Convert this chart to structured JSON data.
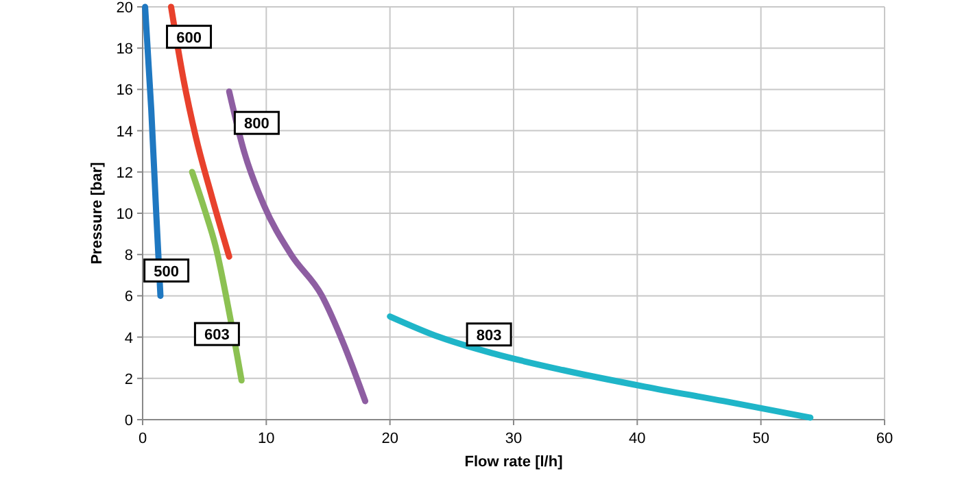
{
  "chart_data": {
    "type": "line",
    "xlabel": "Flow rate [l/h]",
    "ylabel": "Pressure [bar]",
    "xlim": [
      0,
      60
    ],
    "ylim": [
      0,
      20
    ],
    "xticks": [
      0,
      10,
      20,
      30,
      40,
      50,
      60
    ],
    "yticks": [
      0,
      2,
      4,
      6,
      8,
      10,
      12,
      14,
      16,
      18,
      20
    ],
    "grid": true,
    "marker": "none",
    "line_style": "solid",
    "series": [
      {
        "name": "500",
        "color": "#1f78c1",
        "x": [
          0.2,
          0.7,
          1.1,
          1.44
        ],
        "values": [
          20,
          15,
          10,
          6
        ]
      },
      {
        "name": "600",
        "color": "#e8412c",
        "x": [
          2.3,
          3.3,
          4.3,
          5.6,
          7.0
        ],
        "values": [
          20,
          16.5,
          13.7,
          10.8,
          7.9
        ]
      },
      {
        "name": "800",
        "color": "#8e5ea2",
        "x": [
          7.0,
          8.2,
          9.8,
          12.0,
          14.5,
          16.3,
          18.0
        ],
        "values": [
          15.9,
          13,
          10.4,
          8,
          6,
          3.6,
          0.9
        ]
      },
      {
        "name": "603",
        "color": "#8cc152",
        "x": [
          4.0,
          5.0,
          5.9,
          7.0,
          8.0
        ],
        "values": [
          12,
          10.2,
          8.4,
          5.2,
          1.9
        ]
      },
      {
        "name": "803",
        "color": "#1fb5c8",
        "x": [
          20,
          24,
          28.4,
          34,
          40.6,
          47,
          54
        ],
        "values": [
          5,
          4,
          3.2,
          2.4,
          1.6,
          0.9,
          0.1
        ]
      }
    ]
  }
}
